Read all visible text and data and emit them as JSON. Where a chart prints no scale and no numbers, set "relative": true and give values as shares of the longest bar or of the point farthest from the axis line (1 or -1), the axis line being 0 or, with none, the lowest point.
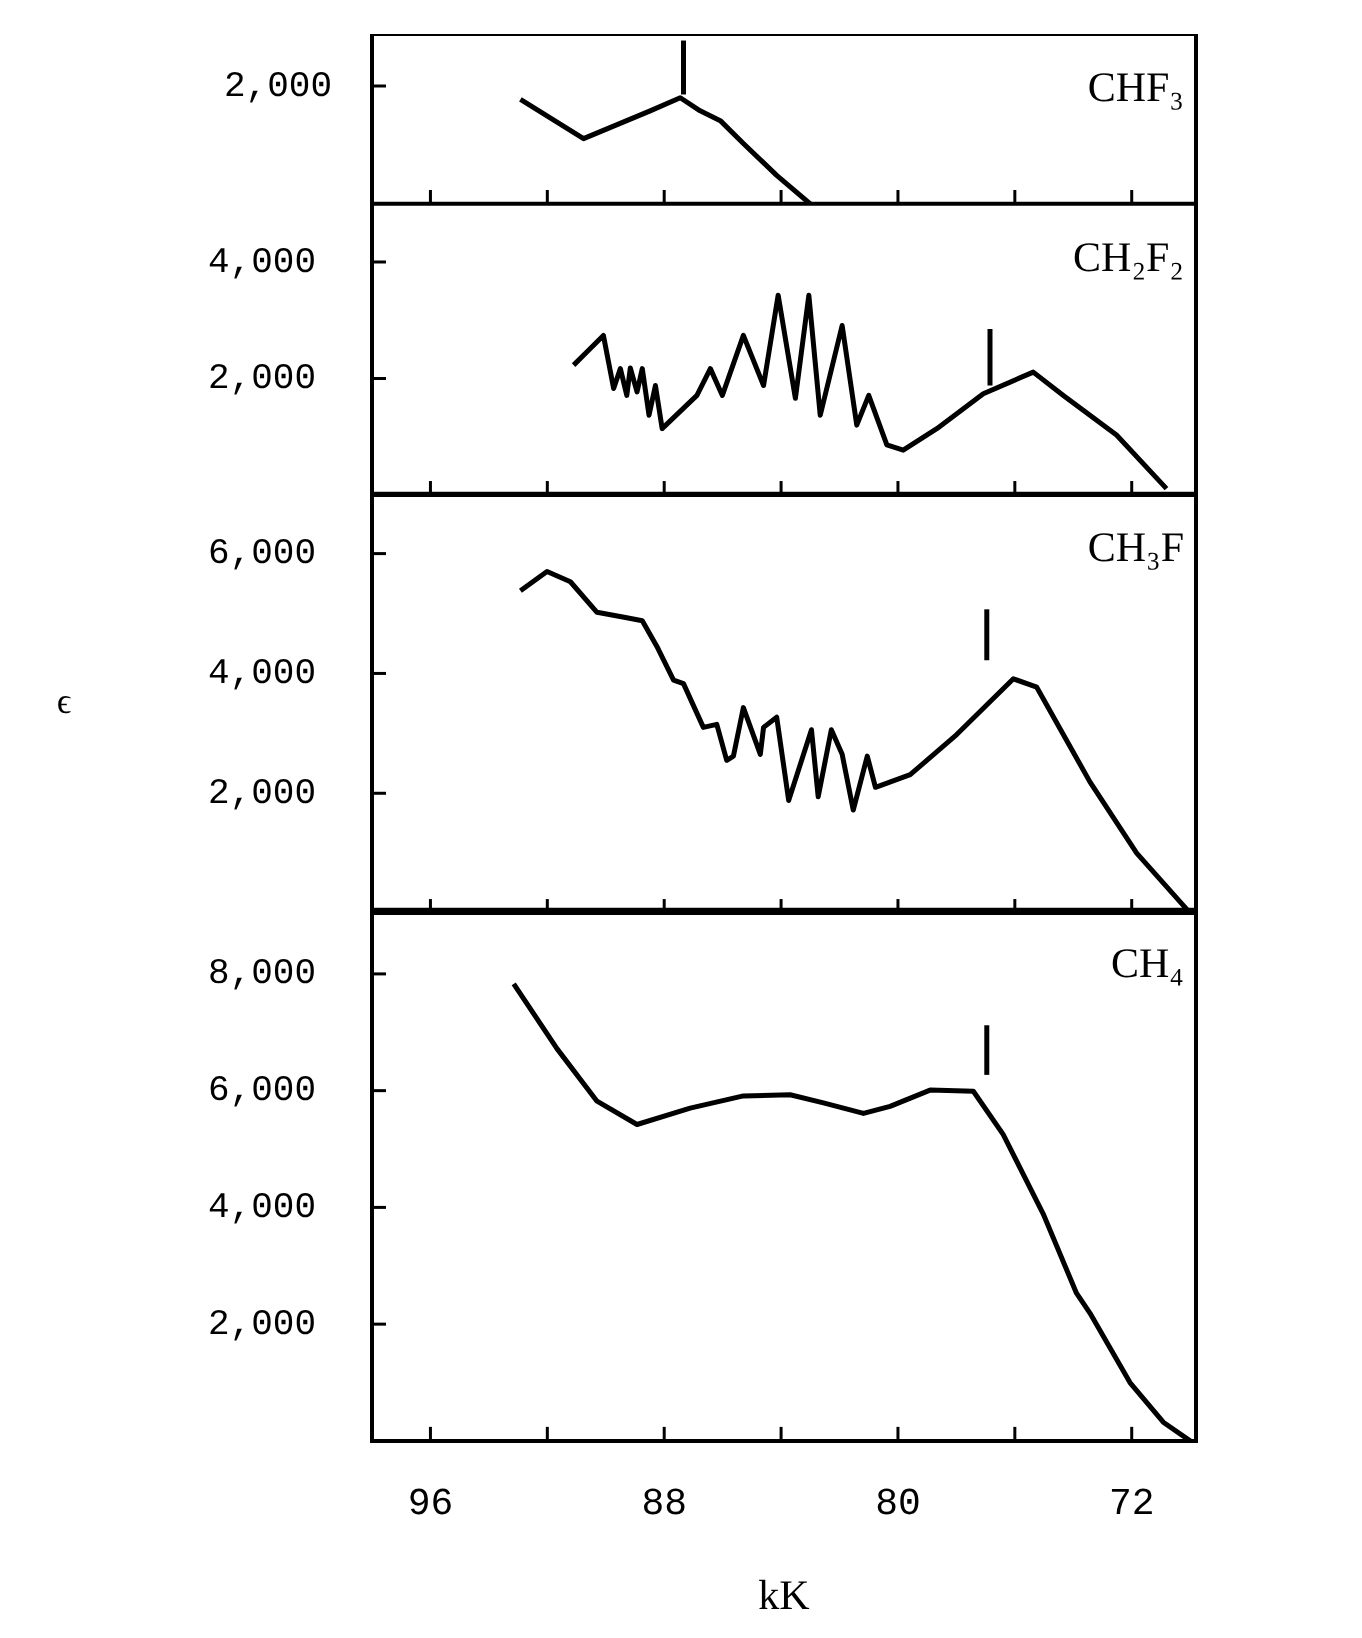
{
  "chart_data": [
    {
      "type": "line",
      "marker": "none",
      "relative": true,
      "annotations": [
        "2,000"
      ],
      "xlim": [
        98,
        69.8
      ],
      "xticks": [
        96,
        {
          "value": 92,
          "label": null
        },
        88,
        {
          "value": 84,
          "label": null
        },
        80,
        {
          "value": 76,
          "label": null
        },
        72
      ],
      "tick_labels": "y",
      "series": [
        {
          "name": "CHF₃",
          "color": "#000000",
          "x": [
            92.92,
            90.76,
            88.48,
            87.45,
            86.77,
            86.08,
            85.29,
            84.15,
            83.0
          ],
          "values": [
            0.64,
            0.4,
            0.57,
            0.65,
            0.57,
            0.51,
            0.37,
            0.175,
            0
          ]
        },
        {
          "type": "line",
          "color": "#000000",
          "x": [
            87.34,
            87.34
          ],
          "values": [
            0.67,
            1
          ]
        }
      ]
    },
    {
      "type": "line",
      "marker": "none",
      "xlim": [
        98,
        69.8
      ],
      "xticks": [
        96,
        {
          "value": 92,
          "label": null
        },
        88,
        {
          "value": 84,
          "label": null
        },
        80,
        {
          "value": 76,
          "label": null
        },
        72
      ],
      "ylim": [
        0,
        5000
      ],
      "yticks": [
        {
          "value": 2000,
          "label": "2,000"
        },
        {
          "value": 4000,
          "label": "4,000"
        }
      ],
      "tick_labels": "y",
      "series": [
        {
          "name": "CH₂F₂",
          "color": "#000000",
          "x": [
            91.1,
            90.64,
            90.08,
            89.73,
            89.5,
            89.28,
            89.16,
            88.93,
            88.75,
            88.52,
            88.3,
            88.07,
            86.88,
            86.42,
            86.01,
            85.29,
            84.6,
            84.1,
            83.51,
            83.05,
            82.66,
            81.91,
            81.41,
            81.0,
            80.38,
            79.82,
            78.67,
            77.08,
            75.37,
            74.34,
            72.52,
            70.81
          ],
          "values": [
            2230,
            2460,
            2740,
            1830,
            2170,
            1710,
            2180,
            1770,
            2170,
            1370,
            1880,
            1140,
            1710,
            2170,
            1710,
            2740,
            1880,
            3430,
            1660,
            3430,
            1370,
            2910,
            1200,
            1710,
            860,
            770,
            1140,
            1740,
            2110,
            1710,
            1030,
            110
          ]
        },
        {
          "type": "line",
          "color": "#000000",
          "x": [
            76.85,
            76.85
          ],
          "values": [
            1880,
            2850
          ]
        }
      ]
    },
    {
      "type": "line",
      "marker": "none",
      "ylabel": "ϵ",
      "xlim": [
        98,
        69.8
      ],
      "xticks": [
        96,
        {
          "value": 92,
          "label": null
        },
        88,
        {
          "value": 84,
          "label": null
        },
        80,
        {
          "value": 76,
          "label": null
        },
        72
      ],
      "ylim": [
        0,
        7000
      ],
      "yticks": [
        {
          "value": 2000,
          "label": "2,000"
        },
        {
          "value": 4000,
          "label": "4,000"
        },
        {
          "value": 6000,
          "label": "6,000"
        }
      ],
      "tick_labels": "y",
      "series": [
        {
          "name": "CH₃F",
          "color": "#000000",
          "x": [
            92.92,
            92.01,
            91.21,
            90.3,
            89.28,
            88.75,
            88.25,
            87.68,
            87.34,
            86.66,
            86.2,
            85.86,
            85.63,
            85.29,
            84.71,
            84.6,
            84.15,
            83.74,
            82.96,
            82.73,
            82.28,
            81.91,
            81.53,
            81.05,
            80.77,
            79.58,
            77.99,
            76.05,
            75.25,
            73.43,
            71.83,
            70.0
          ],
          "values": [
            5380,
            5700,
            5530,
            5020,
            4930,
            4880,
            4450,
            3890,
            3830,
            3100,
            3150,
            2550,
            2620,
            3430,
            2650,
            3100,
            3270,
            1880,
            3060,
            1940,
            3060,
            2650,
            1720,
            2620,
            2100,
            2310,
            2980,
            3910,
            3770,
            2190,
            1000,
            0
          ]
        },
        {
          "type": "line",
          "color": "#000000",
          "x": [
            76.96,
            76.96
          ],
          "values": [
            4220,
            5070
          ]
        }
      ]
    },
    {
      "type": "line",
      "marker": "none",
      "xlabel": "kK",
      "xlim": [
        98,
        69.8
      ],
      "xticks": [
        96,
        {
          "value": 92,
          "label": null
        },
        88,
        {
          "value": 84,
          "label": null
        },
        80,
        {
          "value": 76,
          "label": null
        },
        72
      ],
      "ylim": [
        0,
        9100
      ],
      "yticks": [
        {
          "value": 2000,
          "label": "2,000"
        },
        {
          "value": 4000,
          "label": "4,000"
        },
        {
          "value": 6000,
          "label": "6,000"
        },
        {
          "value": 8000,
          "label": "8,000"
        }
      ],
      "series": [
        {
          "name": "CH₄",
          "color": "#000000",
          "x": [
            93.15,
            91.67,
            90.3,
            88.93,
            87.11,
            85.29,
            83.69,
            82.55,
            81.18,
            80.27,
            78.9,
            77.42,
            76.4,
            75.03,
            73.89,
            73.43,
            72.06,
            70.92,
            70.0
          ],
          "values": [
            7830,
            6720,
            5820,
            5420,
            5700,
            5910,
            5930,
            5790,
            5610,
            5730,
            6010,
            5990,
            5250,
            3890,
            2530,
            2190,
            1000,
            320,
            0
          ]
        },
        {
          "type": "line",
          "color": "#000000",
          "x": [
            76.96,
            76.96
          ],
          "values": [
            6270,
            7120
          ]
        }
      ]
    }
  ]
}
